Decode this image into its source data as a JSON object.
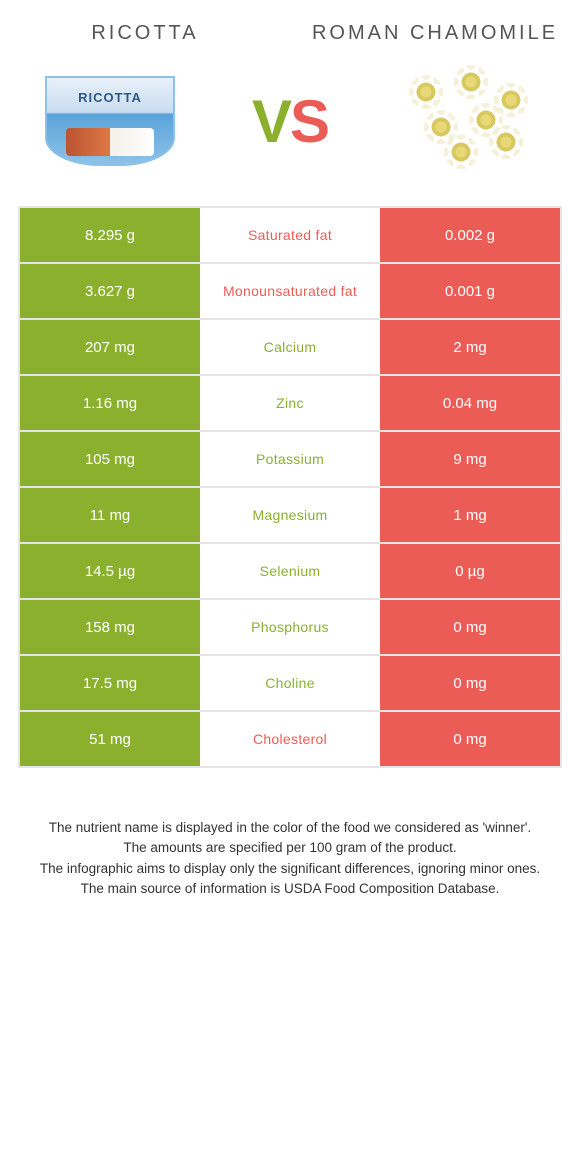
{
  "colors": {
    "green": "#8bb02e",
    "red": "#ec5c57",
    "row_border": "#e5e5e5",
    "text": "#333333",
    "title": "#555555"
  },
  "header": {
    "left_title": "RICOTTA",
    "right_title": "ROMAN CHAMOMILE",
    "vs_v": "V",
    "vs_s": "S"
  },
  "rows": [
    {
      "nutrient": "Saturated fat",
      "left": "8.295 g",
      "right": "0.002 g",
      "left_color": "green",
      "right_color": "red",
      "mid_color": "red"
    },
    {
      "nutrient": "Monounsaturated fat",
      "left": "3.627 g",
      "right": "0.001 g",
      "left_color": "green",
      "right_color": "red",
      "mid_color": "red"
    },
    {
      "nutrient": "Calcium",
      "left": "207 mg",
      "right": "2 mg",
      "left_color": "green",
      "right_color": "red",
      "mid_color": "green"
    },
    {
      "nutrient": "Zinc",
      "left": "1.16 mg",
      "right": "0.04 mg",
      "left_color": "green",
      "right_color": "red",
      "mid_color": "green"
    },
    {
      "nutrient": "Potassium",
      "left": "105 mg",
      "right": "9 mg",
      "left_color": "green",
      "right_color": "red",
      "mid_color": "green"
    },
    {
      "nutrient": "Magnesium",
      "left": "11 mg",
      "right": "1 mg",
      "left_color": "green",
      "right_color": "red",
      "mid_color": "green"
    },
    {
      "nutrient": "Selenium",
      "left": "14.5 µg",
      "right": "0 µg",
      "left_color": "green",
      "right_color": "red",
      "mid_color": "green"
    },
    {
      "nutrient": "Phosphorus",
      "left": "158 mg",
      "right": "0 mg",
      "left_color": "green",
      "right_color": "red",
      "mid_color": "green"
    },
    {
      "nutrient": "Choline",
      "left": "17.5 mg",
      "right": "0 mg",
      "left_color": "green",
      "right_color": "red",
      "mid_color": "green"
    },
    {
      "nutrient": "Cholesterol",
      "left": "51 mg",
      "right": "0 mg",
      "left_color": "green",
      "right_color": "red",
      "mid_color": "red"
    }
  ],
  "footer": {
    "line1": "The nutrient name is displayed in the color of the food we considered as 'winner'.",
    "line2": "The amounts are specified per 100 gram of the product.",
    "line3": "The infographic aims to display only the significant differences, ignoring minor ones.",
    "line4": "The main source of information is USDA Food Composition Database."
  }
}
